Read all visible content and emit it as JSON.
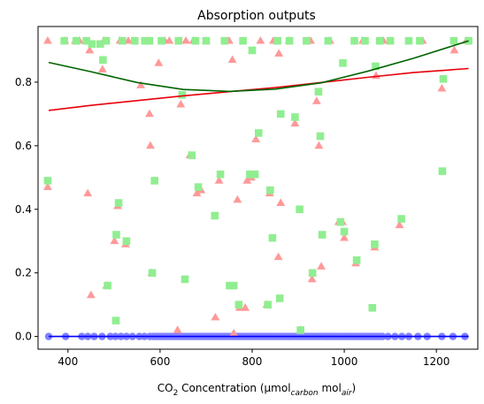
{
  "chart_data": {
    "type": "scatter",
    "title": "Absorption outputs",
    "xlabel_main": "CO",
    "xlabel_sub2": "2",
    "xlabel_mid": " Concentration (μmol",
    "xlabel_sub_carbon": "carbon",
    "xlabel_mid2": " mol",
    "xlabel_sub_air": "air",
    "xlabel_end": ")",
    "xlim": [
      335,
      1290
    ],
    "ylim": [
      -0.04,
      0.975
    ],
    "xticks": [
      400,
      600,
      800,
      1000,
      1200
    ],
    "yticks": [
      0.0,
      0.2,
      0.4,
      0.6,
      0.8
    ],
    "xtick_labels": [
      "400",
      "600",
      "800",
      "1000",
      "1200"
    ],
    "ytick_labels": [
      "0.0",
      "0.2",
      "0.4",
      "0.6",
      "0.8"
    ],
    "colors": {
      "blue": "#8080ff",
      "blue_line": "#0000ff",
      "red": "#ff9999",
      "red_line": "#e8000b",
      "green": "#90ee90",
      "green_line": "#006400"
    },
    "series": [
      {
        "marker": "circle",
        "color": "#8080ff",
        "points": [
          [
            358,
            0
          ],
          [
            395,
            0
          ],
          [
            430,
            0
          ],
          [
            443,
            0
          ],
          [
            457,
            0
          ],
          [
            474,
            0
          ],
          [
            492,
            0
          ],
          [
            503,
            0
          ],
          [
            515,
            0
          ],
          [
            527,
            0
          ],
          [
            540,
            0
          ],
          [
            555,
            0
          ],
          [
            566,
            0
          ],
          [
            578,
            0
          ],
          [
            585,
            0
          ],
          [
            591,
            0
          ],
          [
            597,
            0
          ],
          [
            603,
            0
          ],
          [
            609,
            0
          ],
          [
            615,
            0
          ],
          [
            621,
            0
          ],
          [
            627,
            0
          ],
          [
            633,
            0
          ],
          [
            639,
            0
          ],
          [
            645,
            0
          ],
          [
            651,
            0
          ],
          [
            657,
            0
          ],
          [
            663,
            0
          ],
          [
            669,
            0
          ],
          [
            675,
            0
          ],
          [
            681,
            0
          ],
          [
            687,
            0
          ],
          [
            693,
            0
          ],
          [
            699,
            0
          ],
          [
            705,
            0
          ],
          [
            711,
            0
          ],
          [
            717,
            0
          ],
          [
            723,
            0
          ],
          [
            729,
            0
          ],
          [
            735,
            0
          ],
          [
            741,
            0
          ],
          [
            747,
            0
          ],
          [
            753,
            0
          ],
          [
            759,
            0
          ],
          [
            765,
            0
          ],
          [
            771,
            0
          ],
          [
            777,
            0
          ],
          [
            783,
            0
          ],
          [
            789,
            0
          ],
          [
            795,
            0
          ],
          [
            801,
            0
          ],
          [
            807,
            0
          ],
          [
            813,
            0
          ],
          [
            819,
            0
          ],
          [
            825,
            0
          ],
          [
            831,
            0
          ],
          [
            837,
            0
          ],
          [
            843,
            0
          ],
          [
            849,
            0
          ],
          [
            855,
            0
          ],
          [
            861,
            0
          ],
          [
            867,
            0
          ],
          [
            873,
            0
          ],
          [
            879,
            0
          ],
          [
            885,
            0
          ],
          [
            891,
            0
          ],
          [
            897,
            0
          ],
          [
            903,
            0
          ],
          [
            909,
            0
          ],
          [
            915,
            0
          ],
          [
            921,
            0
          ],
          [
            927,
            0
          ],
          [
            933,
            0
          ],
          [
            939,
            0
          ],
          [
            945,
            0
          ],
          [
            951,
            0
          ],
          [
            957,
            0
          ],
          [
            963,
            0
          ],
          [
            969,
            0
          ],
          [
            975,
            0
          ],
          [
            981,
            0
          ],
          [
            987,
            0
          ],
          [
            993,
            0
          ],
          [
            999,
            0
          ],
          [
            1005,
            0
          ],
          [
            1011,
            0
          ],
          [
            1017,
            0
          ],
          [
            1023,
            0
          ],
          [
            1029,
            0
          ],
          [
            1035,
            0
          ],
          [
            1041,
            0
          ],
          [
            1047,
            0
          ],
          [
            1053,
            0
          ],
          [
            1059,
            0
          ],
          [
            1065,
            0
          ],
          [
            1071,
            0
          ],
          [
            1077,
            0
          ],
          [
            1083,
            0
          ],
          [
            1095,
            0
          ],
          [
            1110,
            0
          ],
          [
            1125,
            0
          ],
          [
            1140,
            0
          ],
          [
            1160,
            0
          ],
          [
            1180,
            0
          ],
          [
            1212,
            0
          ],
          [
            1236,
            0
          ],
          [
            1262,
            0
          ]
        ]
      },
      {
        "marker": "triangle",
        "color": "#ff9999",
        "points": [
          [
            356,
            0.47
          ],
          [
            356,
            0.93
          ],
          [
            393,
            0.93
          ],
          [
            416,
            0.93
          ],
          [
            425,
            0.93
          ],
          [
            443,
            0.45
          ],
          [
            447,
            0.9
          ],
          [
            450,
            0.13
          ],
          [
            475,
            0.84
          ],
          [
            478,
            0.93
          ],
          [
            484,
            0.16
          ],
          [
            501,
            0.3
          ],
          [
            508,
            0.41
          ],
          [
            513,
            0.93
          ],
          [
            525,
            0.29
          ],
          [
            531,
            0.93
          ],
          [
            558,
            0.79
          ],
          [
            574,
            0.93
          ],
          [
            577,
            0.7
          ],
          [
            579,
            0.6
          ],
          [
            582,
            0.2
          ],
          [
            597,
            0.86
          ],
          [
            610,
            0.93
          ],
          [
            620,
            0.93
          ],
          [
            638,
            0.02
          ],
          [
            645,
            0.73
          ],
          [
            656,
            0.93
          ],
          [
            665,
            0.57
          ],
          [
            672,
            0.93
          ],
          [
            680,
            0.45
          ],
          [
            689,
            0.46
          ],
          [
            700,
            0.93
          ],
          [
            720,
            0.06
          ],
          [
            728,
            0.49
          ],
          [
            750,
            0.93
          ],
          [
            757,
            0.87
          ],
          [
            760,
            0.01
          ],
          [
            768,
            0.43
          ],
          [
            773,
            0.09
          ],
          [
            785,
            0.09
          ],
          [
            789,
            0.49
          ],
          [
            798,
            0.5
          ],
          [
            808,
            0.62
          ],
          [
            818,
            0.93
          ],
          [
            832,
            0.1
          ],
          [
            838,
            0.45
          ],
          [
            846,
            0.93
          ],
          [
            857,
            0.25
          ],
          [
            858,
            0.89
          ],
          [
            862,
            0.42
          ],
          [
            880,
            0.93
          ],
          [
            893,
            0.67
          ],
          [
            905,
            0.02
          ],
          [
            927,
            0.93
          ],
          [
            930,
            0.18
          ],
          [
            940,
            0.74
          ],
          [
            945,
            0.6
          ],
          [
            950,
            0.22
          ],
          [
            969,
            0.93
          ],
          [
            988,
            0.36
          ],
          [
            996,
            0.36
          ],
          [
            1000,
            0.31
          ],
          [
            1025,
            0.23
          ],
          [
            1040,
            0.93
          ],
          [
            1066,
            0.28
          ],
          [
            1069,
            0.82
          ],
          [
            1085,
            0.93
          ],
          [
            1120,
            0.35
          ],
          [
            1170,
            0.93
          ],
          [
            1212,
            0.78
          ],
          [
            1239,
            0.9
          ],
          [
            1265,
            0.93
          ]
        ]
      },
      {
        "marker": "square",
        "color": "#90ee90",
        "points": [
          [
            356,
            0.49
          ],
          [
            392,
            0.93
          ],
          [
            418,
            0.93
          ],
          [
            440,
            0.93
          ],
          [
            452,
            0.92
          ],
          [
            470,
            0.92
          ],
          [
            476,
            0.87
          ],
          [
            483,
            0.93
          ],
          [
            486,
            0.16
          ],
          [
            504,
            0.05
          ],
          [
            505,
            0.32
          ],
          [
            510,
            0.42
          ],
          [
            518,
            0.93
          ],
          [
            527,
            0.3
          ],
          [
            545,
            0.93
          ],
          [
            567,
            0.93
          ],
          [
            577,
            0.93
          ],
          [
            583,
            0.2
          ],
          [
            588,
            0.49
          ],
          [
            603,
            0.93
          ],
          [
            640,
            0.93
          ],
          [
            648,
            0.76
          ],
          [
            654,
            0.18
          ],
          [
            669,
            0.57
          ],
          [
            677,
            0.93
          ],
          [
            683,
            0.47
          ],
          [
            700,
            0.93
          ],
          [
            719,
            0.38
          ],
          [
            731,
            0.51
          ],
          [
            740,
            0.93
          ],
          [
            751,
            0.16
          ],
          [
            760,
            0.16
          ],
          [
            771,
            0.1
          ],
          [
            780,
            0.93
          ],
          [
            795,
            0.51
          ],
          [
            800,
            0.9
          ],
          [
            806,
            0.51
          ],
          [
            814,
            0.64
          ],
          [
            834,
            0.1
          ],
          [
            839,
            0.46
          ],
          [
            844,
            0.31
          ],
          [
            855,
            0.93
          ],
          [
            860,
            0.12
          ],
          [
            862,
            0.7
          ],
          [
            881,
            0.93
          ],
          [
            893,
            0.69
          ],
          [
            903,
            0.4
          ],
          [
            905,
            0.02
          ],
          [
            918,
            0.93
          ],
          [
            931,
            0.2
          ],
          [
            944,
            0.77
          ],
          [
            948,
            0.63
          ],
          [
            952,
            0.32
          ],
          [
            965,
            0.93
          ],
          [
            992,
            0.36
          ],
          [
            997,
            0.86
          ],
          [
            1000,
            0.33
          ],
          [
            1022,
            0.93
          ],
          [
            1027,
            0.24
          ],
          [
            1045,
            0.93
          ],
          [
            1061,
            0.09
          ],
          [
            1066,
            0.29
          ],
          [
            1068,
            0.85
          ],
          [
            1077,
            0.93
          ],
          [
            1100,
            0.93
          ],
          [
            1124,
            0.37
          ],
          [
            1140,
            0.93
          ],
          [
            1164,
            0.93
          ],
          [
            1213,
            0.52
          ],
          [
            1215,
            0.81
          ],
          [
            1238,
            0.93
          ],
          [
            1270,
            0.93
          ]
        ]
      }
    ],
    "lines": [
      {
        "color": "#0000ff",
        "points": [
          [
            358,
            0
          ],
          [
            1270,
            0
          ]
        ]
      },
      {
        "color": "#e8000b",
        "points": [
          [
            358,
            0.711
          ],
          [
            450,
            0.727
          ],
          [
            550,
            0.742
          ],
          [
            650,
            0.757
          ],
          [
            750,
            0.77
          ],
          [
            850,
            0.783
          ],
          [
            950,
            0.799
          ],
          [
            1050,
            0.815
          ],
          [
            1150,
            0.83
          ],
          [
            1270,
            0.843
          ]
        ]
      },
      {
        "color": "#006400",
        "points": [
          [
            358,
            0.862
          ],
          [
            450,
            0.833
          ],
          [
            550,
            0.799
          ],
          [
            650,
            0.777
          ],
          [
            750,
            0.771
          ],
          [
            850,
            0.778
          ],
          [
            950,
            0.798
          ],
          [
            1050,
            0.834
          ],
          [
            1150,
            0.875
          ],
          [
            1270,
            0.93
          ]
        ]
      }
    ]
  }
}
